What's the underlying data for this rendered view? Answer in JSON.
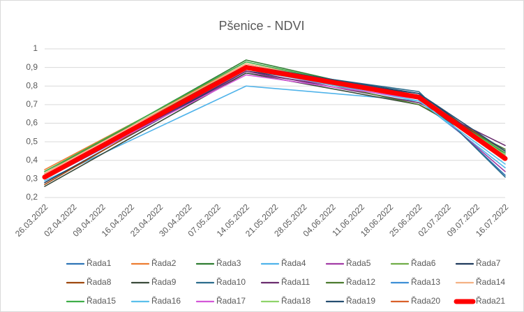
{
  "chart_data": {
    "type": "line",
    "title": "Pšenice - NDVI",
    "x": [
      "26.03.2022",
      "14.05.2022",
      "25.06.2022",
      "16.07.2022"
    ],
    "xlim": [
      "26.03.2022",
      "16.07.2022"
    ],
    "xticks": [
      "26.03.2022",
      "02.04.2022",
      "09.04.2022",
      "16.04.2022",
      "23.04.2022",
      "30.04.2022",
      "07.05.2022",
      "14.05.2022",
      "21.05.2022",
      "28.05.2022",
      "04.06.2022",
      "11.06.2022",
      "18.06.2022",
      "25.06.2022",
      "02.07.2022",
      "09.07.2022",
      "16.07.2022"
    ],
    "ylim": [
      0.2,
      1
    ],
    "yticks": [
      {
        "value": 0.2,
        "label": "0,2"
      },
      {
        "value": 0.3,
        "label": "0,3"
      },
      {
        "value": 0.4,
        "label": "0,4"
      },
      {
        "value": 0.5,
        "label": "0,5"
      },
      {
        "value": 0.6,
        "label": "0,6"
      },
      {
        "value": 0.7,
        "label": "0,7"
      },
      {
        "value": 0.8,
        "label": "0,8"
      },
      {
        "value": 0.9,
        "label": "0,9"
      },
      {
        "value": 1,
        "label": "1"
      }
    ],
    "grid": true,
    "legend": "bottom",
    "line_width": 1.6,
    "series": [
      {
        "name": "Řada1",
        "color": "#2e75b6",
        "values": [
          0.3,
          0.9,
          0.76,
          0.32
        ]
      },
      {
        "name": "Řada2",
        "color": "#ed7d31",
        "values": [
          0.35,
          0.92,
          0.74,
          0.43
        ]
      },
      {
        "name": "Řada3",
        "color": "#2f7d32",
        "values": [
          0.33,
          0.94,
          0.73,
          0.45
        ]
      },
      {
        "name": "Řada4",
        "color": "#4fb3ea",
        "values": [
          0.29,
          0.8,
          0.72,
          0.36
        ]
      },
      {
        "name": "Řada5",
        "color": "#a33ca6",
        "values": [
          0.3,
          0.87,
          0.74,
          0.34
        ]
      },
      {
        "name": "Řada6",
        "color": "#70ad47",
        "values": [
          0.32,
          0.91,
          0.73,
          0.44
        ]
      },
      {
        "name": "Řada7",
        "color": "#1f3a5c",
        "values": [
          0.28,
          0.88,
          0.76,
          0.43
        ]
      },
      {
        "name": "Řada8",
        "color": "#9e480e",
        "values": [
          0.27,
          0.9,
          0.74,
          0.45
        ]
      },
      {
        "name": "Řada9",
        "color": "#3a4a3a",
        "values": [
          0.26,
          0.87,
          0.7,
          0.44
        ]
      },
      {
        "name": "Řada10",
        "color": "#2b6c8c",
        "values": [
          0.31,
          0.9,
          0.77,
          0.31
        ]
      },
      {
        "name": "Řada11",
        "color": "#6a2c6e",
        "values": [
          0.3,
          0.88,
          0.71,
          0.48
        ]
      },
      {
        "name": "Řada12",
        "color": "#4b7a2e",
        "values": [
          0.34,
          0.91,
          0.7,
          0.46
        ]
      },
      {
        "name": "Řada13",
        "color": "#3d8fd6",
        "values": [
          0.3,
          0.89,
          0.75,
          0.4
        ]
      },
      {
        "name": "Řada14",
        "color": "#f4b183",
        "values": [
          0.33,
          0.92,
          0.74,
          0.42
        ]
      },
      {
        "name": "Řada15",
        "color": "#3fae49",
        "values": [
          0.34,
          0.93,
          0.73,
          0.44
        ]
      },
      {
        "name": "Řada16",
        "color": "#5bc0eb",
        "values": [
          0.3,
          0.89,
          0.72,
          0.38
        ]
      },
      {
        "name": "Řada17",
        "color": "#d458d8",
        "values": [
          0.31,
          0.86,
          0.73,
          0.4
        ]
      },
      {
        "name": "Řada18",
        "color": "#8fd46a",
        "values": [
          0.32,
          0.9,
          0.74,
          0.43
        ]
      },
      {
        "name": "Řada19",
        "color": "#254e70",
        "values": [
          0.3,
          0.91,
          0.76,
          0.45
        ]
      },
      {
        "name": "Řada20",
        "color": "#d9602a",
        "values": [
          0.31,
          0.9,
          0.74,
          0.42
        ]
      },
      {
        "name": "Řada21",
        "color": "#ff0000",
        "line_width": 7,
        "values": [
          0.31,
          0.9,
          0.74,
          0.41
        ]
      }
    ]
  }
}
